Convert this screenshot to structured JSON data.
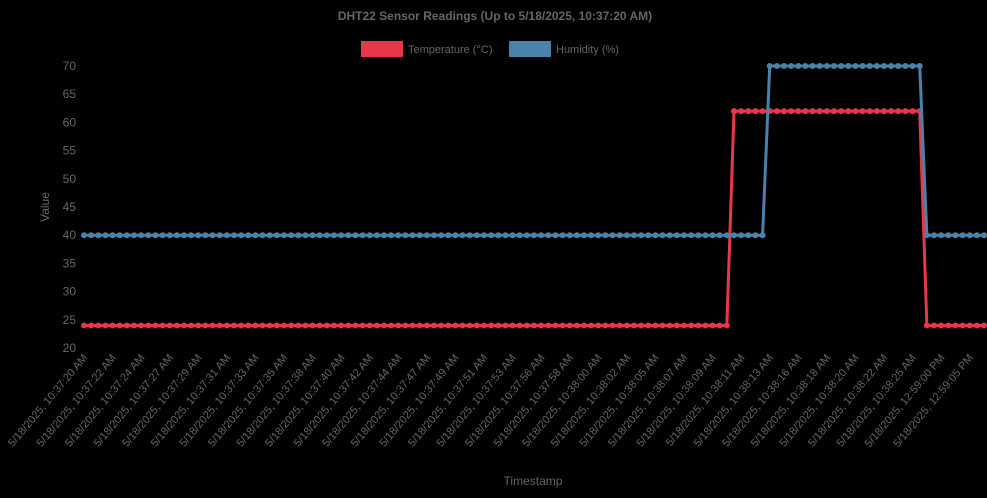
{
  "chart_data": {
    "type": "line",
    "title": "DHT22 Sensor Readings (Up to 5/18/2025, 10:37:20 AM)",
    "xlabel": "Timestamp",
    "ylabel": "Value",
    "ylim": [
      20,
      70
    ],
    "yticks": [
      20,
      25,
      30,
      35,
      40,
      45,
      50,
      55,
      60,
      65,
      70
    ],
    "grid": false,
    "legend_position": "top",
    "x_tick_labels": [
      "5/18/2025, 10:37:20 AM",
      "5/18/2025, 10:37:22 AM",
      "5/18/2025, 10:37:24 AM",
      "5/18/2025, 10:37:27 AM",
      "5/18/2025, 10:37:29 AM",
      "5/18/2025, 10:37:31 AM",
      "5/18/2025, 10:37:33 AM",
      "5/18/2025, 10:37:35 AM",
      "5/18/2025, 10:37:38 AM",
      "5/18/2025, 10:37:40 AM",
      "5/18/2025, 10:37:42 AM",
      "5/18/2025, 10:37:44 AM",
      "5/18/2025, 10:37:47 AM",
      "5/18/2025, 10:37:49 AM",
      "5/18/2025, 10:37:51 AM",
      "5/18/2025, 10:37:53 AM",
      "5/18/2025, 10:37:56 AM",
      "5/18/2025, 10:37:58 AM",
      "5/18/2025, 10:38:00 AM",
      "5/18/2025, 10:38:02 AM",
      "5/18/2025, 10:38:05 AM",
      "5/18/2025, 10:38:07 AM",
      "5/18/2025, 10:38:09 AM",
      "5/18/2025, 10:38:11 AM",
      "5/18/2025, 10:38:13 AM",
      "5/18/2025, 10:38:16 AM",
      "5/18/2025, 10:38:18 AM",
      "5/18/2025, 10:38:20 AM",
      "5/18/2025, 10:38:22 AM",
      "5/18/2025, 10:38:25 AM",
      "5/18/2025, 12:59:00 PM",
      "5/18/2025, 12:59:05 PM"
    ],
    "point_count": 127,
    "series": [
      {
        "name": "Temperature (°C)",
        "color": "#e8374b",
        "segments": [
          {
            "from_point": 0,
            "to_point": 90,
            "value": 24
          },
          {
            "from_point": 91,
            "to_point": 117,
            "value": 62
          },
          {
            "from_point": 118,
            "to_point": 126,
            "value": 24
          }
        ]
      },
      {
        "name": "Humidity (%)",
        "color": "#4a82aa",
        "segments": [
          {
            "from_point": 0,
            "to_point": 95,
            "value": 40
          },
          {
            "from_point": 96,
            "to_point": 117,
            "value": 70
          },
          {
            "from_point": 118,
            "to_point": 126,
            "value": 40
          }
        ]
      }
    ]
  }
}
